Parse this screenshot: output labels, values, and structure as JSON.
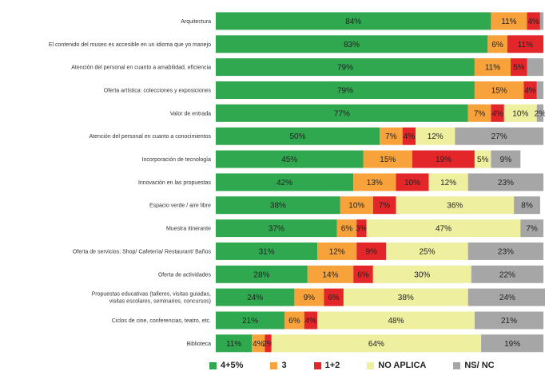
{
  "chart_data": {
    "type": "bar",
    "orientation": "horizontal",
    "stacked": true,
    "normalized": true,
    "title": "",
    "xlabel": "",
    "ylabel": "",
    "xlim": [
      0,
      100
    ],
    "legend_position": "bottom",
    "grid": false,
    "categories": [
      "Arquitectura",
      "El contenido del museo es accesible en un idioma que yo manejo",
      "Atención del personal en cuanto a amabilidad, eficiencia",
      "Oferta artística: colecciones y exposiciones",
      "Valor de entrada",
      "Atención del personal en cuanto a conocimientos",
      "Incorporación de tecnología",
      "Innovación en las propuestas",
      "Espacio verde / aire libre",
      "Muestra itinerante",
      "Oferta de servicios: Shop/ Cafetería/ Restaurant/ Baños",
      "Oferta de actividades",
      "Propuestas educativas (talleres, visitas guiadas, visitas escolares, seminarios, concursos)",
      "Ciclos de cine, conferencias, teatro, etc.",
      "Biblioteca"
    ],
    "series": [
      {
        "name": "4+5%",
        "color": "#2fa84f",
        "values": [
          84,
          83,
          79,
          79,
          77,
          50,
          45,
          42,
          38,
          37,
          31,
          28,
          24,
          21,
          11
        ],
        "labels": [
          "84%",
          "83%",
          "79%",
          "79%",
          "77%",
          "50%",
          "45%",
          "42%",
          "38%",
          "37%",
          "31%",
          "28%",
          "24%",
          "21%",
          "11%"
        ]
      },
      {
        "name": "3",
        "color": "#f7a23a",
        "values": [
          11,
          6,
          11,
          15,
          7,
          7,
          15,
          13,
          10,
          6,
          12,
          14,
          9,
          6,
          4
        ],
        "labels": [
          "11%",
          "6%",
          "11%",
          "15%",
          "7%",
          "7%",
          "15%",
          "13%",
          "10%",
          "6%",
          "12%",
          "14%",
          "9%",
          "6%",
          "4%"
        ]
      },
      {
        "name": "1+2",
        "color": "#e3262a",
        "values": [
          4,
          11,
          5,
          4,
          4,
          4,
          19,
          10,
          7,
          3,
          9,
          6,
          6,
          4,
          2
        ],
        "labels": [
          "4%",
          "11%",
          "5%",
          "4%",
          "4%",
          "4%",
          "19%",
          "10%",
          "7%",
          "3%",
          "9%",
          "6%",
          "6%",
          "4%",
          "2%"
        ]
      },
      {
        "name": "NO APLICA",
        "color": "#eef0a0",
        "values": [
          0,
          0,
          0,
          0,
          10,
          12,
          5,
          12,
          36,
          47,
          25,
          30,
          38,
          48,
          64
        ],
        "labels": [
          "",
          "",
          "",
          "",
          "10%",
          "12%",
          "5%",
          "12%",
          "36%",
          "47%",
          "25%",
          "30%",
          "38%",
          "48%",
          "64%"
        ]
      },
      {
        "name": "NS/ NC",
        "color": "#a6a6a6",
        "values": [
          1,
          0,
          5,
          2,
          2,
          27,
          9,
          23,
          8,
          7,
          23,
          22,
          24,
          21,
          19
        ],
        "labels": [
          "",
          "",
          "",
          "",
          "2%",
          "27%",
          "9%",
          "23%",
          "8%",
          "7%",
          "23%",
          "22%",
          "24%",
          "21%",
          "19%"
        ]
      }
    ]
  }
}
